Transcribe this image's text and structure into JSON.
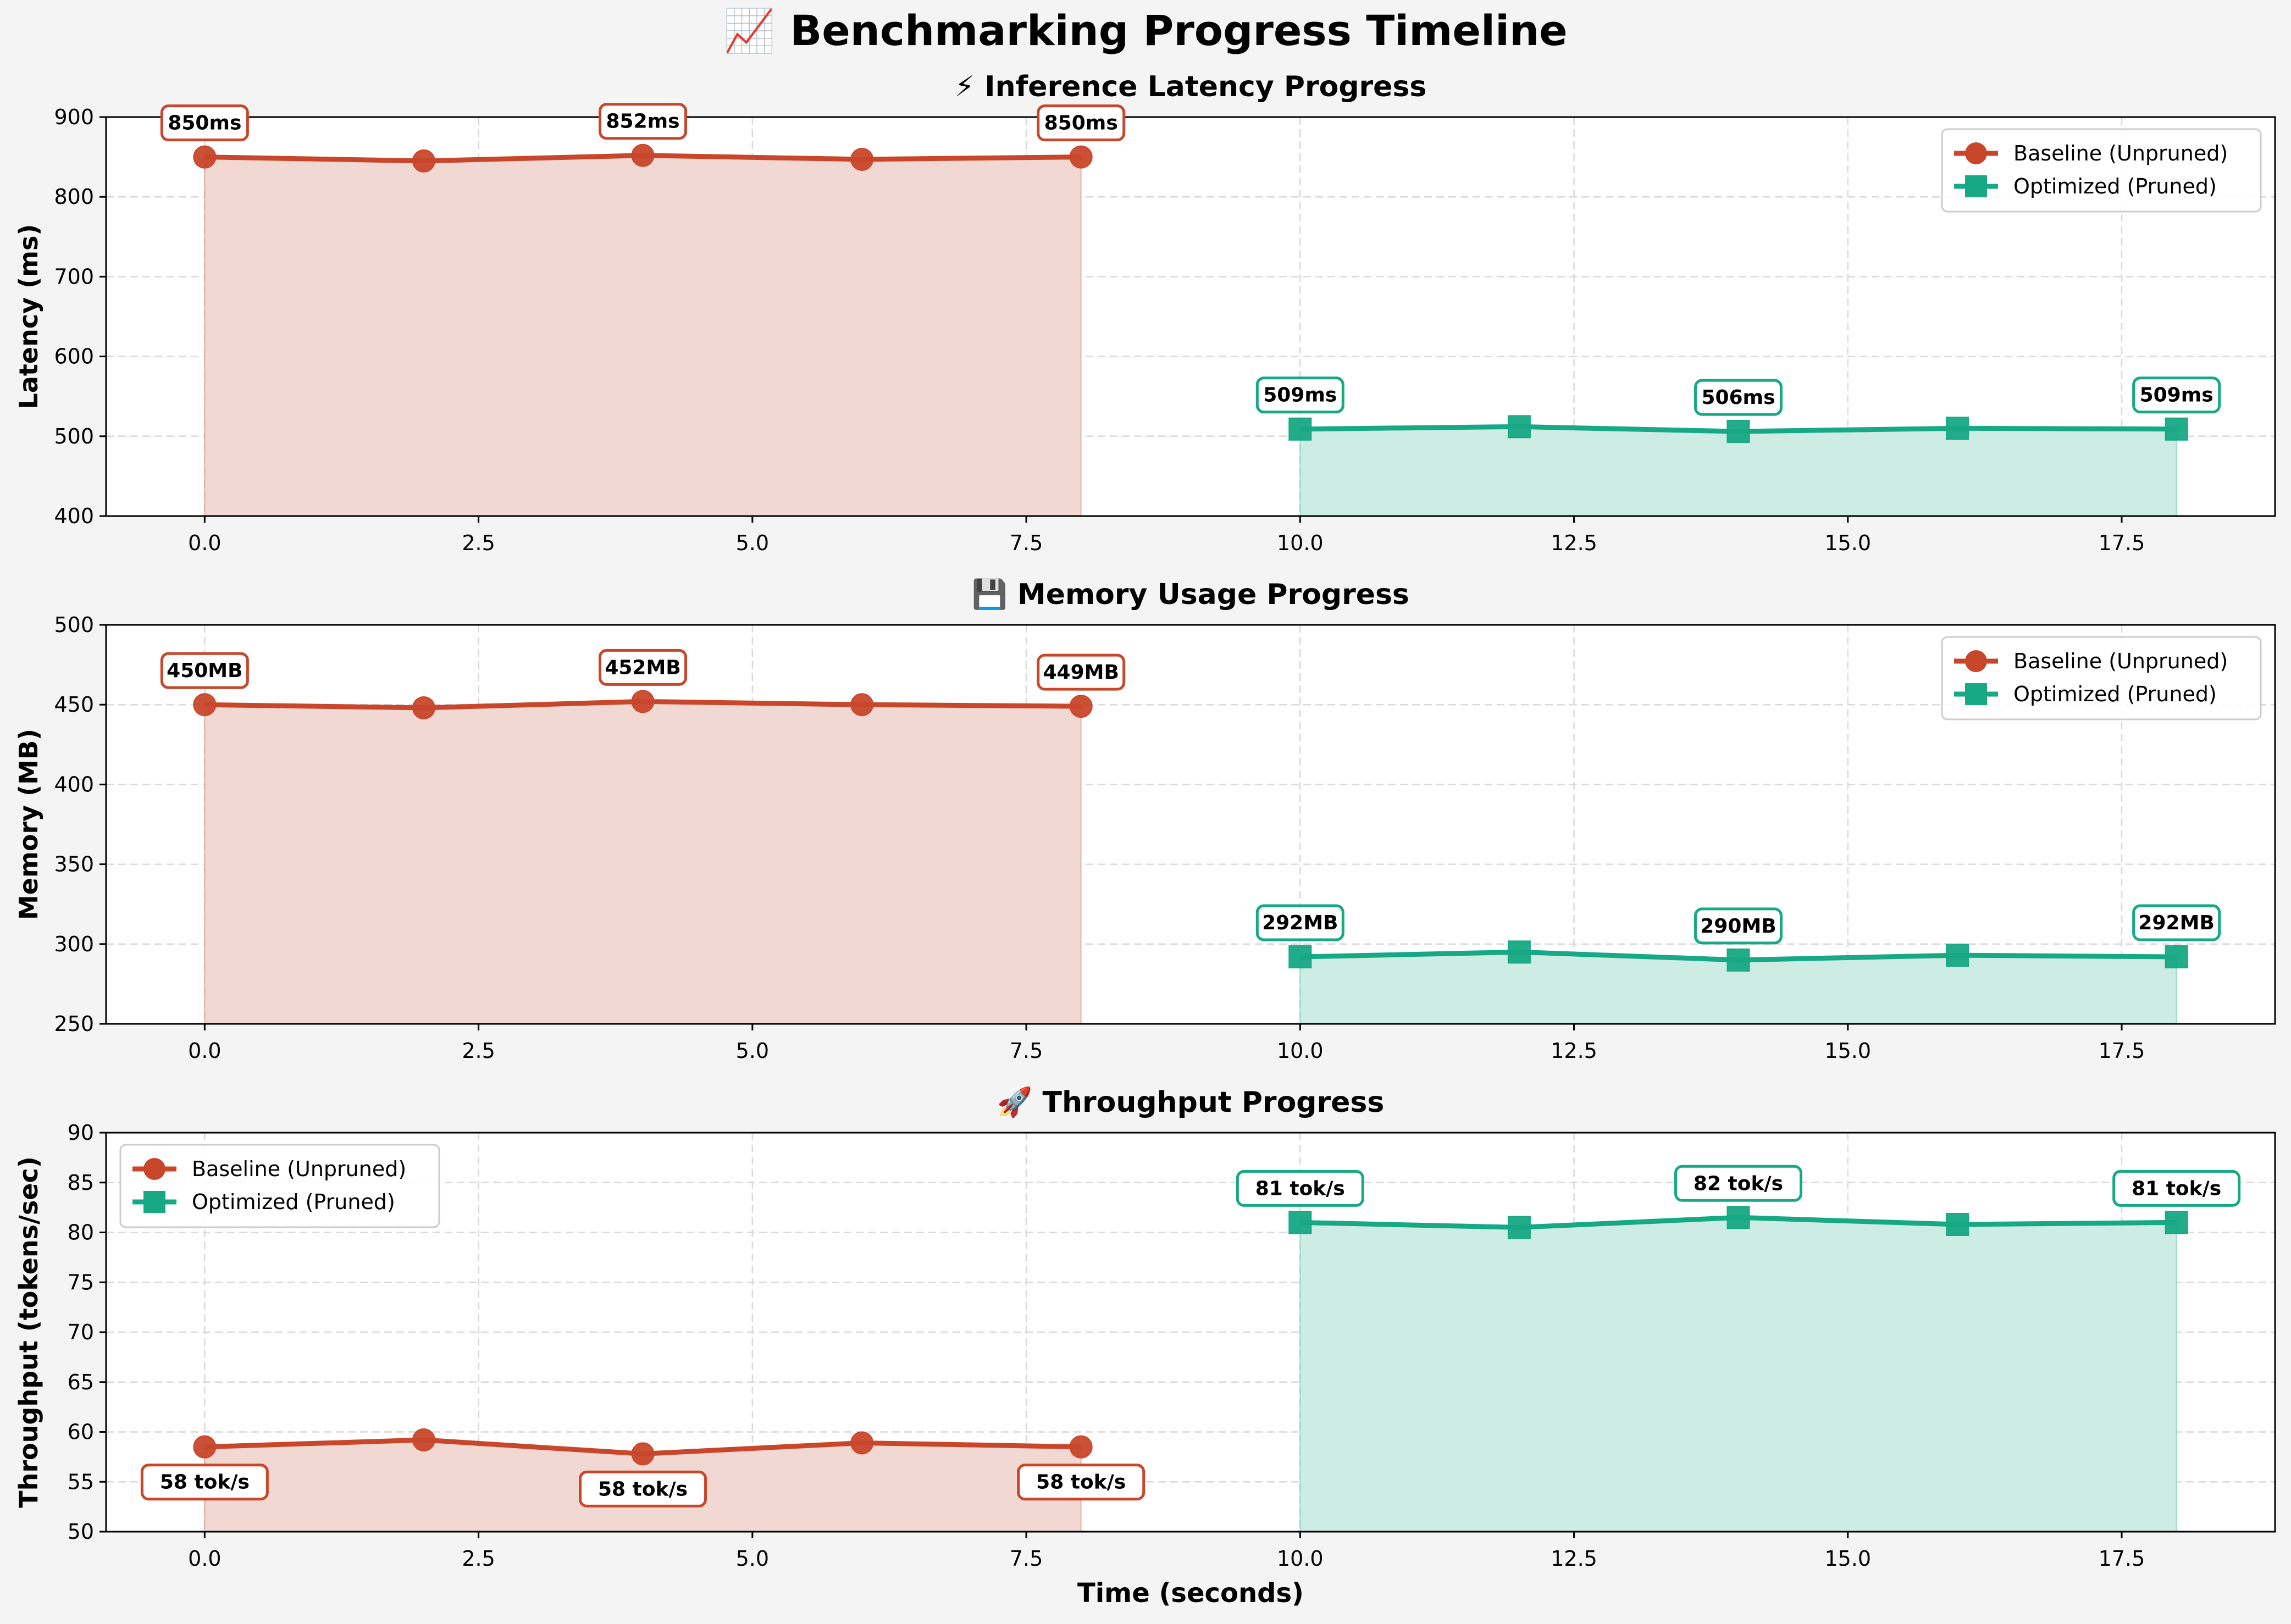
{
  "title": "📈 Benchmarking Progress Timeline",
  "colors": {
    "baseline": "#c8472b",
    "optimized": "#17a884",
    "baseline_fill": "#f2d8d2",
    "optimized_fill": "#cdece3",
    "background": "#f4f4f4",
    "grid": "#d9d9d9"
  },
  "chart_data": [
    {
      "type": "line",
      "title": "⚡ Inference Latency Progress",
      "xlabel": "",
      "ylabel": "Latency (ms)",
      "xlim": [
        -0.9,
        18.9
      ],
      "ylim": [
        400,
        900
      ],
      "xticks": [
        0.0,
        2.5,
        5.0,
        7.5,
        10.0,
        12.5,
        15.0,
        17.5
      ],
      "xtick_labels": [
        "0.0",
        "2.5",
        "5.0",
        "7.5",
        "10.0",
        "12.5",
        "15.0",
        "17.5"
      ],
      "yticks": [
        400,
        500,
        600,
        700,
        800,
        900
      ],
      "ytick_labels": [
        "400",
        "500",
        "600",
        "700",
        "800",
        "900"
      ],
      "grid": true,
      "legend_position": "upper-right",
      "series": [
        {
          "name": "Baseline (Unpruned)",
          "x": [
            0,
            2,
            4,
            6,
            8
          ],
          "y": [
            850,
            845,
            852,
            847,
            850
          ],
          "marker": "circle",
          "color": "#c8472b",
          "fill": "#f2d8d2"
        },
        {
          "name": "Optimized (Pruned)",
          "x": [
            10,
            12,
            14,
            16,
            18
          ],
          "y": [
            509,
            512,
            506,
            510,
            509
          ],
          "marker": "square",
          "color": "#17a884",
          "fill": "#cdece3"
        }
      ],
      "annotations": [
        {
          "series": 0,
          "x": 0,
          "y": 850,
          "text": "850ms",
          "placement": "above"
        },
        {
          "series": 0,
          "x": 4,
          "y": 852,
          "text": "852ms",
          "placement": "above"
        },
        {
          "series": 0,
          "x": 8,
          "y": 850,
          "text": "850ms",
          "placement": "above"
        },
        {
          "series": 1,
          "x": 10,
          "y": 509,
          "text": "509ms",
          "placement": "above"
        },
        {
          "series": 1,
          "x": 14,
          "y": 506,
          "text": "506ms",
          "placement": "above"
        },
        {
          "series": 1,
          "x": 18,
          "y": 509,
          "text": "509ms",
          "placement": "above"
        }
      ]
    },
    {
      "type": "line",
      "title": "💾 Memory Usage Progress",
      "xlabel": "",
      "ylabel": "Memory (MB)",
      "xlim": [
        -0.9,
        18.9
      ],
      "ylim": [
        250,
        500
      ],
      "xticks": [
        0.0,
        2.5,
        5.0,
        7.5,
        10.0,
        12.5,
        15.0,
        17.5
      ],
      "xtick_labels": [
        "0.0",
        "2.5",
        "5.0",
        "7.5",
        "10.0",
        "12.5",
        "15.0",
        "17.5"
      ],
      "yticks": [
        250,
        300,
        350,
        400,
        450,
        500
      ],
      "ytick_labels": [
        "250",
        "300",
        "350",
        "400",
        "450",
        "500"
      ],
      "grid": true,
      "legend_position": "upper-right",
      "series": [
        {
          "name": "Baseline (Unpruned)",
          "x": [
            0,
            2,
            4,
            6,
            8
          ],
          "y": [
            450,
            448,
            452,
            450,
            449
          ],
          "marker": "circle",
          "color": "#c8472b",
          "fill": "#f2d8d2"
        },
        {
          "name": "Optimized (Pruned)",
          "x": [
            10,
            12,
            14,
            16,
            18
          ],
          "y": [
            292,
            295,
            290,
            293,
            292
          ],
          "marker": "square",
          "color": "#17a884",
          "fill": "#cdece3"
        }
      ],
      "annotations": [
        {
          "series": 0,
          "x": 0,
          "y": 450,
          "text": "450MB",
          "placement": "above"
        },
        {
          "series": 0,
          "x": 4,
          "y": 452,
          "text": "452MB",
          "placement": "above"
        },
        {
          "series": 0,
          "x": 8,
          "y": 449,
          "text": "449MB",
          "placement": "above"
        },
        {
          "series": 1,
          "x": 10,
          "y": 292,
          "text": "292MB",
          "placement": "above"
        },
        {
          "series": 1,
          "x": 14,
          "y": 290,
          "text": "290MB",
          "placement": "above"
        },
        {
          "series": 1,
          "x": 18,
          "y": 292,
          "text": "292MB",
          "placement": "above"
        }
      ]
    },
    {
      "type": "line",
      "title": "🚀 Throughput Progress",
      "xlabel": "Time (seconds)",
      "ylabel": "Throughput (tokens/sec)",
      "xlim": [
        -0.9,
        18.9
      ],
      "ylim": [
        50,
        90
      ],
      "xticks": [
        0.0,
        2.5,
        5.0,
        7.5,
        10.0,
        12.5,
        15.0,
        17.5
      ],
      "xtick_labels": [
        "0.0",
        "2.5",
        "5.0",
        "7.5",
        "10.0",
        "12.5",
        "15.0",
        "17.5"
      ],
      "yticks": [
        50,
        55,
        60,
        65,
        70,
        75,
        80,
        85,
        90
      ],
      "ytick_labels": [
        "50",
        "55",
        "60",
        "65",
        "70",
        "75",
        "80",
        "85",
        "90"
      ],
      "grid": true,
      "legend_position": "upper-left",
      "series": [
        {
          "name": "Baseline (Unpruned)",
          "x": [
            0,
            2,
            4,
            6,
            8
          ],
          "y": [
            58.5,
            59.2,
            57.8,
            58.9,
            58.5
          ],
          "marker": "circle",
          "color": "#c8472b",
          "fill": "#f2d8d2"
        },
        {
          "name": "Optimized (Pruned)",
          "x": [
            10,
            12,
            14,
            16,
            18
          ],
          "y": [
            81.0,
            80.5,
            81.5,
            80.8,
            81.0
          ],
          "marker": "square",
          "color": "#17a884",
          "fill": "#cdece3"
        }
      ],
      "annotations": [
        {
          "series": 0,
          "x": 0,
          "y": 58.5,
          "text": "58 tok/s",
          "placement": "below"
        },
        {
          "series": 0,
          "x": 4,
          "y": 57.8,
          "text": "58 tok/s",
          "placement": "below"
        },
        {
          "series": 0,
          "x": 8,
          "y": 58.5,
          "text": "58 tok/s",
          "placement": "below"
        },
        {
          "series": 1,
          "x": 10,
          "y": 81.0,
          "text": "81 tok/s",
          "placement": "above"
        },
        {
          "series": 1,
          "x": 14,
          "y": 81.5,
          "text": "82 tok/s",
          "placement": "above"
        },
        {
          "series": 1,
          "x": 18,
          "y": 81.0,
          "text": "81 tok/s",
          "placement": "above"
        }
      ]
    }
  ]
}
